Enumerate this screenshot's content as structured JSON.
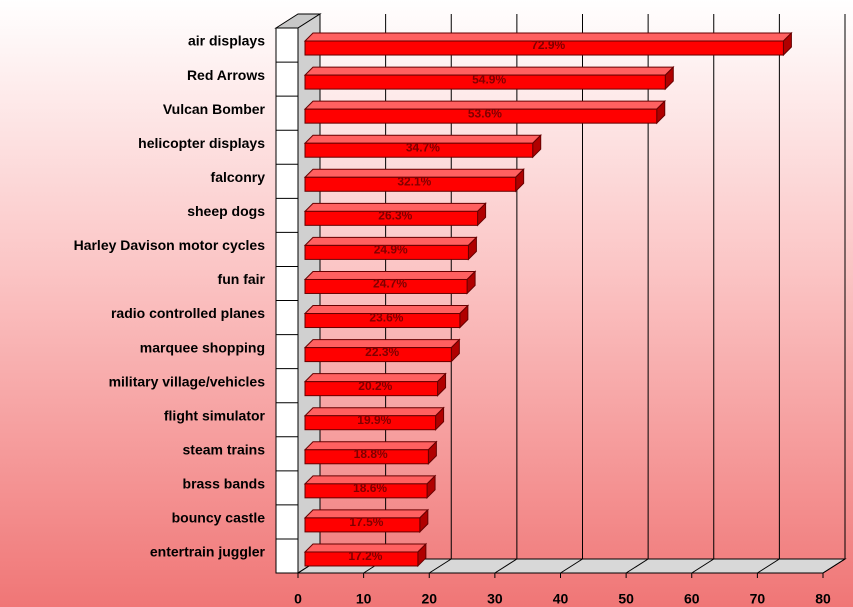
{
  "chart_data": {
    "type": "bar3d-horizontal",
    "categories": [
      "air displays",
      "Red Arrows",
      "Vulcan Bomber",
      "helicopter displays",
      "falconry",
      "sheep dogs",
      "Harley Davison motor cycles",
      "fun fair",
      "radio controlled planes",
      "marquee shopping",
      "military village/vehicles",
      "flight simulator",
      "steam trains",
      "brass bands",
      "bouncy castle",
      "entertrain juggler"
    ],
    "values": [
      72.9,
      54.9,
      53.6,
      34.7,
      32.1,
      26.3,
      24.9,
      24.7,
      23.6,
      22.3,
      20.2,
      19.9,
      18.8,
      18.6,
      17.5,
      17.2
    ],
    "value_labels": [
      "72.9%",
      "54.9%",
      "53.6%",
      "34.7%",
      "32.1%",
      "26.3%",
      "24.9%",
      "24.7%",
      "23.6%",
      "22.3%",
      "20.2%",
      "19.9%",
      "18.8%",
      "18.6%",
      "17.5%",
      "17.2%"
    ],
    "color": "#ff0000",
    "xlim": [
      0,
      80
    ],
    "xticks": [
      0,
      10,
      20,
      30,
      40,
      50,
      60,
      70,
      80
    ],
    "grid": true
  }
}
